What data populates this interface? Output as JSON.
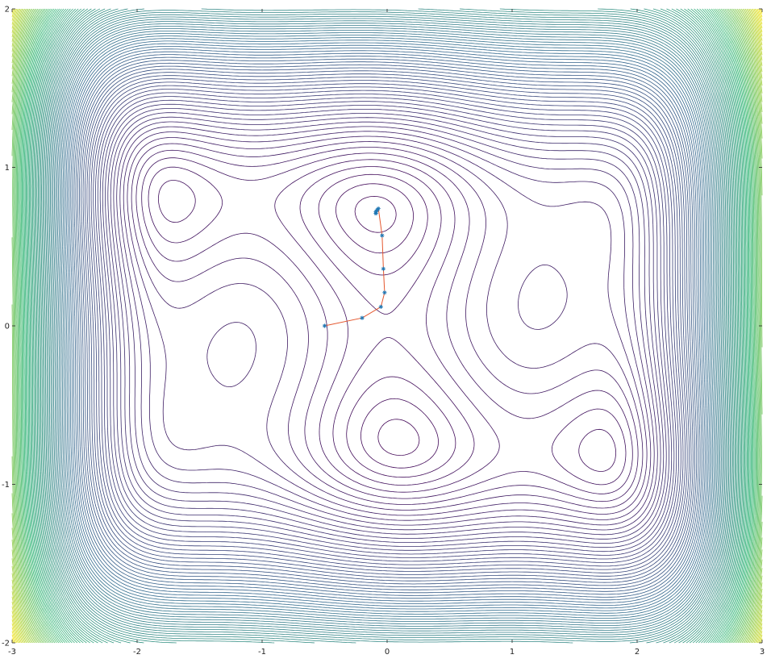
{
  "chart_data": {
    "type": "contour",
    "title": "",
    "xlabel": "",
    "ylabel": "",
    "xlim": [
      -3,
      3
    ],
    "ylim": [
      -2,
      2
    ],
    "x_ticks": [
      -3,
      -2,
      -1,
      0,
      1,
      2,
      3
    ],
    "y_ticks": [
      -2,
      -1,
      0,
      1,
      2
    ],
    "x_tick_labels": [
      "-3",
      "-2",
      "-1",
      "0",
      "1",
      "2",
      "3"
    ],
    "y_tick_labels": [
      "-2",
      "-1",
      "0",
      "1",
      "2"
    ],
    "grid": false,
    "colormap": [
      "#440154",
      "#31688e",
      "#35b779",
      "#fde725"
    ],
    "contour_levels": {
      "min": -1.2,
      "max": 162,
      "count": 110
    },
    "series": [
      {
        "type": "line+markers",
        "color": "#e4572e",
        "marker": "asterisk",
        "marker_color": "#1f77b4",
        "x": [
          -0.5,
          -0.2,
          -0.05,
          -0.02,
          -0.03,
          -0.04,
          -0.07,
          -0.08,
          -0.09,
          -0.09,
          -0.09
        ],
        "y": [
          0.0,
          0.05,
          0.12,
          0.21,
          0.36,
          0.57,
          0.74,
          0.73,
          0.72,
          0.71,
          0.71
        ]
      }
    ]
  }
}
